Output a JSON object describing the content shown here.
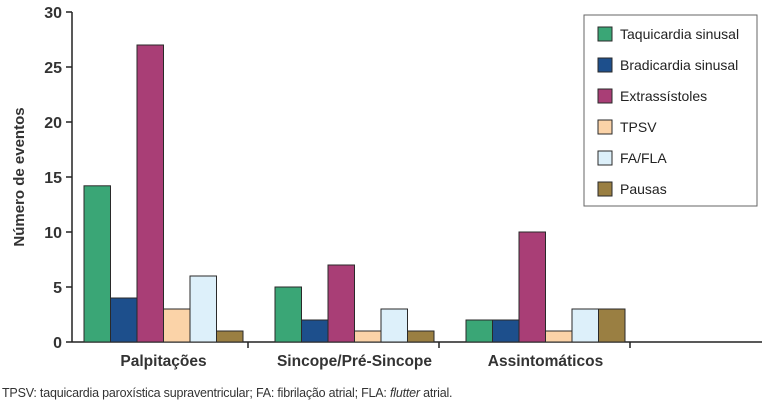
{
  "chart_data": {
    "type": "bar",
    "ylabel": "Número de eventos",
    "ylim": [
      0,
      30
    ],
    "yticks": [
      0,
      5,
      10,
      15,
      20,
      25,
      30
    ],
    "categories": [
      "Palpitações",
      "Sincope/Pré-Sincope",
      "Assintomáticos"
    ],
    "series": [
      {
        "name": "Taquicardia sinusal",
        "color": "#3aa676",
        "values": [
          14.2,
          5,
          2
        ]
      },
      {
        "name": "Bradicardia sinusal",
        "color": "#1d4f8c",
        "values": [
          4,
          2,
          2
        ]
      },
      {
        "name": "Extrassístoles",
        "color": "#a93e76",
        "values": [
          27,
          7,
          10
        ]
      },
      {
        "name": "TPSV",
        "color": "#fbd3a8",
        "values": [
          3,
          1,
          1
        ]
      },
      {
        "name": "FA/FLA",
        "color": "#ddf0fa",
        "values": [
          6,
          3,
          3
        ]
      },
      {
        "name": "Pausas",
        "color": "#9a7f42",
        "values": [
          1,
          1,
          3
        ]
      }
    ],
    "grid": false,
    "legend_position": "top-right"
  },
  "footnote": {
    "part1": "TPSV: taquicardia paroxística supraventricular; FA: fibrilação atrial; FLA: ",
    "italic": "flutter",
    "part2": " atrial."
  }
}
